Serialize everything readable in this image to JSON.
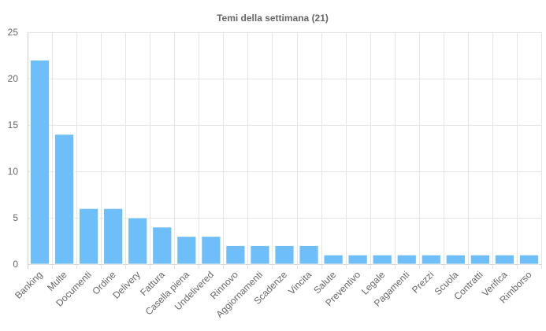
{
  "chart_data": {
    "type": "bar",
    "title": "Temi della settimana (21)",
    "xlabel": "",
    "ylabel": "",
    "categories": [
      "Banking",
      "Multe",
      "Documenti",
      "Ordine",
      "Delivery",
      "Fattura",
      "Casella piena",
      "Undelivered",
      "Rinnovo",
      "Aggiornamenti",
      "Scadenze",
      "Vincita",
      "Salute",
      "Preventivo",
      "Legale",
      "Pagamenti",
      "Prezzi",
      "Scuola",
      "Contratti",
      "Verifica",
      "Rimborso"
    ],
    "values": [
      22,
      14,
      6,
      6,
      5,
      4,
      3,
      3,
      2,
      2,
      2,
      2,
      1,
      1,
      1,
      1,
      1,
      1,
      1,
      1,
      1
    ],
    "ylim": [
      0,
      25
    ],
    "yticks": [
      0,
      5,
      10,
      15,
      20,
      25
    ],
    "grid": true,
    "legend": "none",
    "bar_color": "#6dbef9",
    "bar_edge_color": "#ffffff"
  }
}
